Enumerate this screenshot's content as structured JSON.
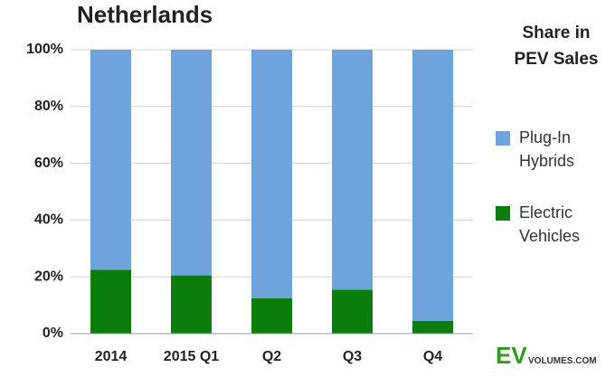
{
  "chart_data": {
    "type": "stacked_bar",
    "title": "Netherlands",
    "legend_title": "Share in PEV Sales",
    "categories": [
      "2014",
      "2015 Q1",
      "Q2",
      "Q3",
      "Q4"
    ],
    "series": [
      {
        "name": "Electric Vehicles",
        "color": "#0b7d0b",
        "values": [
          22.5,
          20.5,
          12.5,
          15.5,
          4.5
        ]
      },
      {
        "name": "Plug-In Hybrids",
        "color": "#6fa3db",
        "values": [
          77.5,
          79.5,
          87.5,
          84.5,
          95.5
        ]
      }
    ],
    "ylim": [
      0,
      100
    ],
    "yticks": [
      {
        "value": 0,
        "label": "0%"
      },
      {
        "value": 20,
        "label": "20%"
      },
      {
        "value": 40,
        "label": "40%"
      },
      {
        "value": 60,
        "label": "60%"
      },
      {
        "value": 80,
        "label": "80%"
      },
      {
        "value": 100,
        "label": "100%"
      }
    ],
    "grid": true,
    "legend": "right"
  },
  "logo": {
    "mark": "EV",
    "text": "VOLUMES.COM"
  }
}
